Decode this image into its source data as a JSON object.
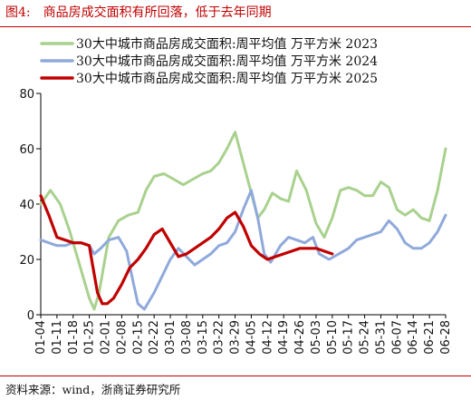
{
  "figure": {
    "number": "图4:",
    "title": "商品房成交面积有所回落，低于去年同期",
    "source": "资料来源：wind，浙商证券研究所"
  },
  "chart_data": {
    "type": "line",
    "title": "商品房成交面积有所回落，低于去年同期",
    "xlabel": "",
    "ylabel": "",
    "ylim": [
      0,
      80
    ],
    "yticks": [
      0,
      20,
      40,
      60,
      80
    ],
    "grid": false,
    "legend_position": "top-right",
    "x_tick_labels": [
      "01-04",
      "01-11",
      "01-18",
      "01-25",
      "02-01",
      "02-08",
      "02-15",
      "02-22",
      "03-01",
      "03-08",
      "03-15",
      "03-22",
      "03-29",
      "04-05",
      "04-12",
      "04-19",
      "04-26",
      "05-03",
      "05-10",
      "05-17",
      "05-24",
      "05-31",
      "06-07",
      "06-14",
      "06-21",
      "06-28"
    ],
    "series": [
      {
        "name": "30大中城市商品房成交面积:周平均值 万平方米 2023",
        "color": "#a9d18e",
        "x": [
          0,
          0.6,
          1.2,
          1.8,
          2.4,
          3.0,
          3.3,
          3.6,
          4.2,
          4.8,
          5.4,
          6.0,
          6.5,
          7.0,
          7.6,
          8.2,
          8.8,
          9.4,
          10.0,
          10.5,
          11.0,
          11.5,
          12.0,
          12.5,
          13.0,
          13.4,
          13.8,
          14.3,
          14.8,
          15.3,
          15.8,
          16.4,
          17.0,
          17.5,
          18.0,
          18.5,
          19.0,
          19.5,
          20.0,
          20.5,
          21.0,
          21.5,
          22.0,
          22.5,
          23.0,
          23.5,
          24.0,
          24.5,
          25.0
        ],
        "values": [
          40,
          45,
          40,
          30,
          18,
          6,
          2,
          8,
          28,
          34,
          36,
          37,
          45,
          50,
          51,
          49,
          47,
          49,
          51,
          52,
          55,
          60,
          66,
          55,
          44,
          35,
          38,
          44,
          42,
          41,
          52,
          45,
          33,
          28,
          35,
          45,
          46,
          45,
          43,
          43,
          48,
          46,
          38,
          36,
          38,
          35,
          34,
          45,
          60
        ]
      },
      {
        "name": "30大中城市商品房成交面积:周平均值 万平方米 2024",
        "color": "#8fa9db",
        "x": [
          0,
          0.5,
          1.0,
          1.5,
          2.0,
          2.5,
          3.0,
          3.3,
          3.7,
          4.2,
          4.8,
          5.3,
          5.7,
          6.0,
          6.4,
          7.0,
          7.5,
          8.0,
          8.5,
          9.0,
          9.5,
          10.0,
          10.5,
          11.0,
          11.5,
          12.0,
          12.5,
          13.0,
          13.4,
          13.8,
          14.2,
          14.8,
          15.3,
          15.8,
          16.3,
          16.8,
          17.2,
          17.8,
          18.4,
          19.0,
          19.5,
          20.0,
          20.5,
          21.0,
          21.5,
          22.0,
          22.5,
          23.0,
          23.5,
          24.0,
          24.5,
          25.0
        ],
        "values": [
          27,
          26,
          25,
          25,
          26,
          26,
          25,
          22,
          24,
          27,
          28,
          23,
          12,
          4,
          2,
          8,
          14,
          20,
          24,
          21,
          18,
          20,
          22,
          25,
          26,
          30,
          38,
          45,
          35,
          22,
          19,
          25,
          28,
          27,
          26,
          28,
          22,
          20,
          22,
          24,
          27,
          28,
          29,
          30,
          34,
          31,
          26,
          24,
          24,
          26,
          30,
          36
        ]
      },
      {
        "name": "30大中城市商品房成交面积:周平均值 万平方米 2025",
        "color": "#c00000",
        "x": [
          0,
          0.5,
          1.0,
          1.5,
          2.0,
          2.5,
          3.0,
          3.2,
          3.5,
          3.8,
          4.1,
          4.5,
          5.0,
          5.5,
          6.0,
          6.5,
          7.0,
          7.5,
          8.0,
          8.5,
          9.0,
          9.5,
          10.0,
          10.5,
          11.0,
          11.5,
          12.0,
          12.5,
          13.0,
          13.5,
          14.0,
          14.5,
          15.0,
          15.5,
          16.0,
          16.5,
          17.0,
          17.5,
          18.0
        ],
        "values": [
          43,
          36,
          28,
          27,
          26,
          26,
          25,
          18,
          8,
          4,
          4,
          6,
          11,
          17,
          20,
          24,
          29,
          31,
          26,
          21,
          22,
          24,
          26,
          28,
          31,
          35,
          37,
          32,
          25,
          22,
          20,
          21,
          22,
          23,
          24,
          24,
          24,
          23,
          22
        ]
      }
    ]
  }
}
